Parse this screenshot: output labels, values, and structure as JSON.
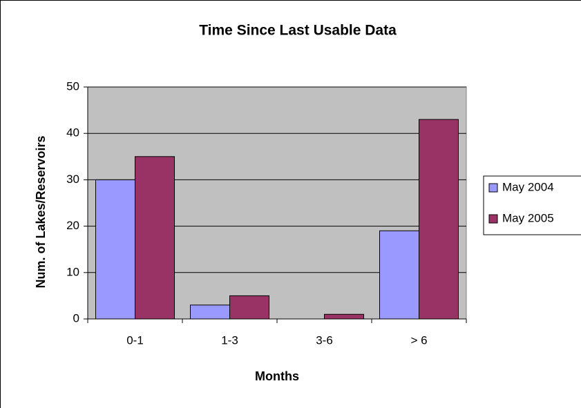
{
  "chart_data": {
    "type": "bar",
    "title": "Time Since Last Usable Data",
    "x_label": "Months",
    "y_label": "Num. of Lakes/Reservoirs",
    "categories": [
      "0-1",
      "1-3",
      "3-6",
      "> 6"
    ],
    "series": [
      {
        "name": "May 2004",
        "color": "#9999ff",
        "values": [
          30,
          3,
          0,
          19
        ]
      },
      {
        "name": "May 2005",
        "color": "#993366",
        "values": [
          35,
          5,
          1,
          43
        ]
      }
    ],
    "ylim": [
      0,
      50
    ],
    "yticks": [
      0,
      10,
      20,
      30,
      40,
      50
    ],
    "grid": true,
    "legend": "right"
  }
}
